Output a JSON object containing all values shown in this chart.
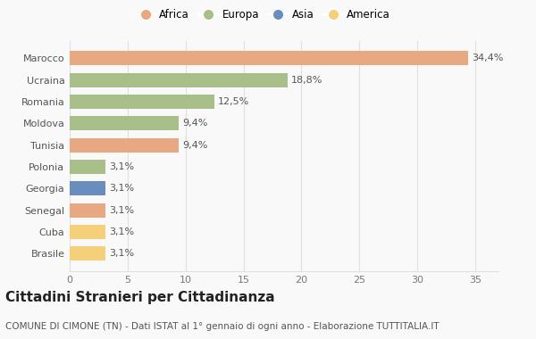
{
  "categories": [
    "Brasile",
    "Cuba",
    "Senegal",
    "Georgia",
    "Polonia",
    "Tunisia",
    "Moldova",
    "Romania",
    "Ucraina",
    "Marocco"
  ],
  "values": [
    3.1,
    3.1,
    3.1,
    3.1,
    3.1,
    9.4,
    9.4,
    12.5,
    18.8,
    34.4
  ],
  "labels": [
    "3,1%",
    "3,1%",
    "3,1%",
    "3,1%",
    "3,1%",
    "9,4%",
    "9,4%",
    "12,5%",
    "18,8%",
    "34,4%"
  ],
  "colors": [
    "#F5D07A",
    "#F5D07A",
    "#E8A882",
    "#6A8DC0",
    "#A8BF8A",
    "#E8A882",
    "#A8BF8A",
    "#A8BF8A",
    "#A8BF8A",
    "#E8A882"
  ],
  "legend_items": [
    {
      "label": "Africa",
      "color": "#E8A882"
    },
    {
      "label": "Europa",
      "color": "#A8BF8A"
    },
    {
      "label": "Asia",
      "color": "#6A8DC0"
    },
    {
      "label": "America",
      "color": "#F5D07A"
    }
  ],
  "xlim": [
    0,
    37
  ],
  "xticks": [
    0,
    5,
    10,
    15,
    20,
    25,
    30,
    35
  ],
  "title": "Cittadini Stranieri per Cittadinanza",
  "subtitle": "COMUNE DI CIMONE (TN) - Dati ISTAT al 1° gennaio di ogni anno - Elaborazione TUTTITALIA.IT",
  "background_color": "#F9F9F9",
  "grid_color": "#E0E0E0",
  "bar_height": 0.65,
  "label_fontsize": 8,
  "tick_fontsize": 8,
  "title_fontsize": 11,
  "subtitle_fontsize": 7.5
}
